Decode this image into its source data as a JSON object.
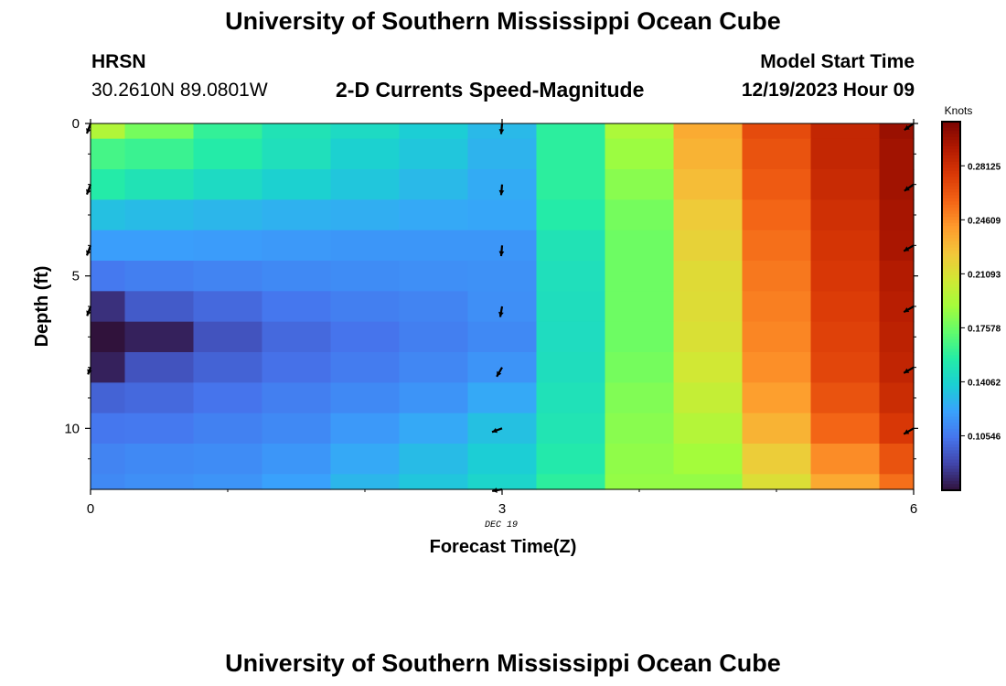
{
  "page": {
    "title_top": "University of Southern Mississippi Ocean Cube",
    "title_bottom": "University of Southern Mississippi Ocean Cube",
    "station": "HRSN",
    "coords": "30.2610N  89.0801W",
    "subtitle": "2-D Currents Speed-Magnitude",
    "model_start_label": "Model Start Time",
    "model_start_value": "12/19/2023 Hour 09",
    "date_label": "DEC 19"
  },
  "chart_data": {
    "type": "heatmap",
    "title": "2-D Currents Speed-Magnitude",
    "xlabel": "Forecast Time(Z)",
    "ylabel": "Depth (ft)",
    "xlim": [
      0,
      6
    ],
    "ylim": [
      0,
      12
    ],
    "y_inverted": true,
    "x_ticks": [
      0,
      3,
      6
    ],
    "x_tick_labels": [
      "0",
      "3",
      "6"
    ],
    "y_ticks": [
      0,
      5,
      10
    ],
    "y_tick_labels": [
      "0",
      "5",
      "10"
    ],
    "x_centers": [
      0,
      0.5,
      1,
      1.5,
      2,
      2.5,
      3,
      3.5,
      4,
      4.5,
      5,
      5.5,
      6
    ],
    "y_centers": [
      0,
      1,
      2,
      3,
      4,
      5,
      6,
      7,
      8,
      9,
      10,
      11,
      12
    ],
    "values": [
      [
        0.195,
        0.178,
        0.16,
        0.15,
        0.145,
        0.138,
        0.13,
        0.158,
        0.193,
        0.235,
        0.268,
        0.285,
        0.3
      ],
      [
        0.165,
        0.162,
        0.155,
        0.148,
        0.14,
        0.135,
        0.128,
        0.158,
        0.188,
        0.232,
        0.265,
        0.285,
        0.298
      ],
      [
        0.155,
        0.15,
        0.145,
        0.14,
        0.135,
        0.13,
        0.125,
        0.158,
        0.183,
        0.228,
        0.262,
        0.283,
        0.298
      ],
      [
        0.133,
        0.131,
        0.129,
        0.127,
        0.126,
        0.124,
        0.123,
        0.155,
        0.178,
        0.222,
        0.258,
        0.28,
        0.296
      ],
      [
        0.12,
        0.12,
        0.119,
        0.118,
        0.117,
        0.117,
        0.117,
        0.15,
        0.176,
        0.218,
        0.255,
        0.278,
        0.295
      ],
      [
        0.106,
        0.108,
        0.11,
        0.112,
        0.113,
        0.114,
        0.115,
        0.148,
        0.176,
        0.214,
        0.252,
        0.276,
        0.292
      ],
      [
        0.08,
        0.095,
        0.1,
        0.105,
        0.108,
        0.11,
        0.114,
        0.147,
        0.176,
        0.213,
        0.25,
        0.274,
        0.29
      ],
      [
        0.045,
        0.075,
        0.092,
        0.1,
        0.104,
        0.108,
        0.112,
        0.146,
        0.176,
        0.211,
        0.248,
        0.272,
        0.288
      ],
      [
        0.075,
        0.092,
        0.098,
        0.103,
        0.107,
        0.111,
        0.116,
        0.147,
        0.178,
        0.207,
        0.245,
        0.27,
        0.286
      ],
      [
        0.098,
        0.1,
        0.104,
        0.108,
        0.112,
        0.116,
        0.124,
        0.149,
        0.181,
        0.202,
        0.24,
        0.265,
        0.282
      ],
      [
        0.105,
        0.106,
        0.109,
        0.112,
        0.118,
        0.124,
        0.133,
        0.151,
        0.183,
        0.196,
        0.232,
        0.258,
        0.276
      ],
      [
        0.11,
        0.112,
        0.113,
        0.117,
        0.124,
        0.131,
        0.138,
        0.154,
        0.185,
        0.19,
        0.221,
        0.246,
        0.265
      ],
      [
        0.112,
        0.114,
        0.116,
        0.121,
        0.129,
        0.135,
        0.142,
        0.158,
        0.186,
        0.186,
        0.212,
        0.236,
        0.255
      ]
    ],
    "vectors": [
      {
        "x": 0,
        "y": 0,
        "angle": 250,
        "len": 0.55
      },
      {
        "x": 0,
        "y": 2,
        "angle": 250,
        "len": 0.55
      },
      {
        "x": 0,
        "y": 4,
        "angle": 250,
        "len": 0.55
      },
      {
        "x": 0,
        "y": 6,
        "angle": 250,
        "len": 0.5
      },
      {
        "x": 0,
        "y": 8,
        "angle": 250,
        "len": 0.3
      },
      {
        "x": 3,
        "y": 0,
        "angle": 265,
        "len": 0.55
      },
      {
        "x": 3,
        "y": 2,
        "angle": 265,
        "len": 0.55
      },
      {
        "x": 3,
        "y": 4,
        "angle": 265,
        "len": 0.55
      },
      {
        "x": 3,
        "y": 6,
        "angle": 260,
        "len": 0.55
      },
      {
        "x": 3,
        "y": 8,
        "angle": 240,
        "len": 0.55
      },
      {
        "x": 3,
        "y": 10,
        "angle": 200,
        "len": 0.55
      },
      {
        "x": 3,
        "y": 12,
        "angle": 190,
        "len": 0.5
      },
      {
        "x": 6,
        "y": 0,
        "angle": 215,
        "len": 0.6
      },
      {
        "x": 6,
        "y": 2,
        "angle": 215,
        "len": 0.6
      },
      {
        "x": 6,
        "y": 4,
        "angle": 210,
        "len": 0.6
      },
      {
        "x": 6,
        "y": 6,
        "angle": 210,
        "len": 0.6
      },
      {
        "x": 6,
        "y": 8,
        "angle": 210,
        "len": 0.6
      },
      {
        "x": 6,
        "y": 10,
        "angle": 210,
        "len": 0.6
      }
    ],
    "colorbar": {
      "label": "Knots",
      "vmin": 0.07,
      "vmax": 0.31,
      "ticks": [
        0.10546,
        0.14062,
        0.17578,
        0.21093,
        0.24609,
        0.28125
      ],
      "tick_labels": [
        "0.10546",
        "0.14062",
        "0.17578",
        "0.21093",
        "0.24609",
        "0.28125"
      ],
      "colors": [
        "#30123b",
        "#4145ab",
        "#4675ed",
        "#39a2fc",
        "#1bcfd4",
        "#24eca6",
        "#61fc6c",
        "#a4fc3b",
        "#d1e834",
        "#f3c63a",
        "#fe9b2d",
        "#f36315",
        "#d93806",
        "#b11901",
        "#7a0402"
      ]
    }
  }
}
